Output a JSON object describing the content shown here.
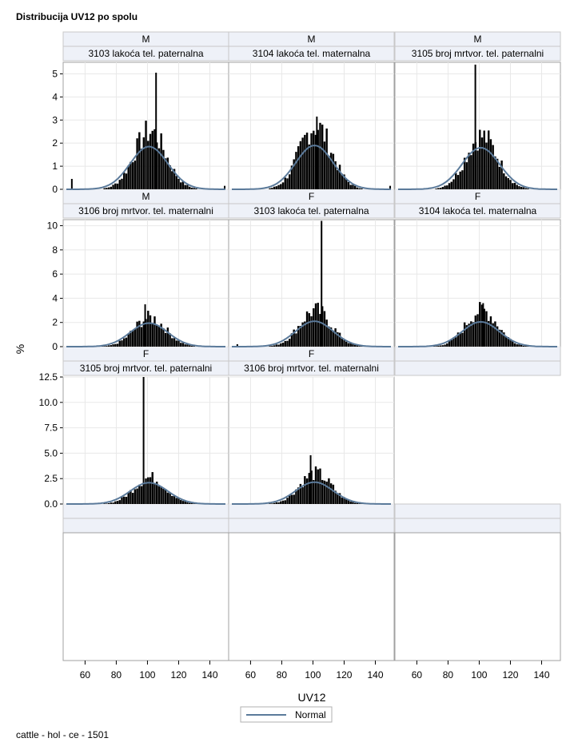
{
  "title": "Distribucija UV12 po spolu",
  "footnote": "cattle - hol - ce - 1501",
  "colors": {
    "bar": "#000000",
    "curve": "#5b7a9a",
    "header_bg": "#eef1f8",
    "grid": "#e8e8e8",
    "frame": "#a0a0a0"
  },
  "chart_data": {
    "type": "bar",
    "subtype": "histogram-panel",
    "xlabel": "UV12",
    "ylabel": "%",
    "xlim": [
      48,
      150
    ],
    "x_ticks": [
      60,
      80,
      100,
      120,
      140
    ],
    "grid": true,
    "legend": {
      "position": "bottom-center",
      "entries": [
        "Normal"
      ]
    },
    "rows": [
      {
        "ylim": [
          0,
          5.5
        ],
        "y_ticks": [
          "0",
          "1",
          "2",
          "3",
          "4",
          "5"
        ],
        "y_tick_values": [
          0,
          1,
          2,
          3,
          4,
          5
        ]
      },
      {
        "ylim": [
          0,
          10.5
        ],
        "y_ticks": [
          "0",
          "2",
          "4",
          "6",
          "8",
          "10"
        ],
        "y_tick_values": [
          0,
          2,
          4,
          6,
          8,
          10
        ]
      },
      {
        "ylim": [
          0,
          12.5
        ],
        "y_ticks": [
          "0.0",
          "2.5",
          "5.0",
          "7.5",
          "10.0",
          "12.5"
        ],
        "y_tick_values": [
          0,
          2.5,
          5,
          7.5,
          10,
          12.5
        ]
      }
    ],
    "panels": [
      {
        "sex": "M",
        "trait": "3103 lakoća tel. paternalna",
        "mean": 101,
        "sd": 12,
        "normal_peak": 1.85,
        "peak_value": 2.5,
        "spike": {
          "x": 105,
          "y": 5.05
        },
        "outliers": [
          {
            "x": 51,
            "y": 0.45
          },
          {
            "x": 149,
            "y": 0.15
          }
        ]
      },
      {
        "sex": "M",
        "trait": "3104 lakoća tel. maternalna",
        "mean": 101,
        "sd": 12,
        "normal_peak": 1.9,
        "peak_value": 2.75,
        "spike": {
          "x": 102,
          "y": 3.15
        },
        "outliers": [
          {
            "x": 149,
            "y": 0.15
          }
        ]
      },
      {
        "sex": "M",
        "trait": "3105 broj mrtvor. tel. paternalni",
        "mean": 101,
        "sd": 12,
        "normal_peak": 1.8,
        "peak_value": 2.3,
        "spike": {
          "x": 97,
          "y": 5.4
        },
        "outliers": []
      },
      {
        "sex": "M",
        "trait": "3106 broj mrtvor. tel. maternalni",
        "mean": 101,
        "sd": 12,
        "normal_peak": 1.95,
        "peak_value": 2.4,
        "spike": {
          "x": 98,
          "y": 3.5
        },
        "outliers": []
      },
      {
        "sex": "F",
        "trait": "3103 lakoća tel. paternalna",
        "mean": 101,
        "sd": 12,
        "normal_peak": 2.1,
        "peak_value": 3.0,
        "spike": {
          "x": 105,
          "y": 10.4
        },
        "outliers": [
          {
            "x": 51,
            "y": 0.2
          }
        ]
      },
      {
        "sex": "F",
        "trait": "3104 lakoća tel. maternalna",
        "mean": 101,
        "sd": 12,
        "normal_peak": 2.05,
        "peak_value": 3.0,
        "spike": {
          "x": 102,
          "y": 3.6
        },
        "outliers": []
      },
      {
        "sex": "F",
        "trait": "3105 broj mrtvor. tel. paternalni",
        "mean": 101,
        "sd": 12,
        "normal_peak": 2.1,
        "peak_value": 2.6,
        "spike": {
          "x": 97,
          "y": 12.5
        },
        "outliers": []
      },
      {
        "sex": "F",
        "trait": "3106 broj mrtvor. tel. maternalni",
        "mean": 101,
        "sd": 12,
        "normal_peak": 2.15,
        "peak_value": 3.0,
        "spike": {
          "x": 98,
          "y": 4.8
        },
        "outliers": []
      }
    ]
  }
}
